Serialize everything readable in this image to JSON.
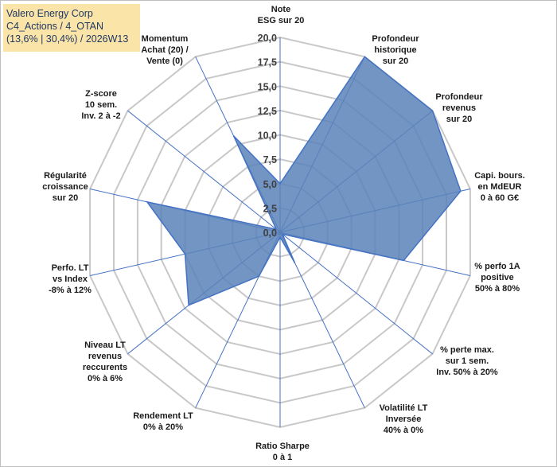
{
  "title": {
    "line1": "Valero Energy Corp",
    "line2": "C4_Actions / 4_OTAN",
    "line3": "(13,6% | 30,4%) / 2026W13"
  },
  "chart_data": {
    "type": "radar",
    "rmax": 20,
    "ticks": [
      "0,0",
      "2,5",
      "5,0",
      "7,5",
      "10,0",
      "12,5",
      "15,0",
      "17,5",
      "20,0"
    ],
    "fill_color": "#5b82b8",
    "line_color": "#4472c4",
    "grid_color": "#c8c8c8",
    "axes": [
      {
        "label": [
          "Note",
          "ESG sur 20"
        ],
        "value": 5.0
      },
      {
        "label": [
          "Profondeur",
          "historique",
          "sur 20"
        ],
        "value": 20.0
      },
      {
        "label": [
          "Profondeur",
          "revenus",
          "sur 20"
        ],
        "value": 20.0
      },
      {
        "label": [
          "Capi. bours.",
          "en MdEUR",
          "0 à 60 G€"
        ],
        "value": 19.0
      },
      {
        "label": [
          "% perfo 1A",
          "positive",
          "50% à 80%"
        ],
        "value": 13.0
      },
      {
        "label": [
          "% perte max.",
          "sur 1 sem.",
          "Inv. 50% à 20%"
        ],
        "value": 0.3
      },
      {
        "label": [
          "Volatilité LT",
          "Inversée",
          "40% à 0%"
        ],
        "value": 3.5
      },
      {
        "label": [
          "Ratio Sharpe",
          "0 à 1"
        ],
        "value": 0.5
      },
      {
        "label": [
          "Rendement LT",
          "0% à 20%"
        ],
        "value": 5.0
      },
      {
        "label": [
          "Niveau LT",
          "revenus",
          "reccurents",
          "0% à 6%"
        ],
        "value": 12.0
      },
      {
        "label": [
          "Perfo. LT",
          "vs Index",
          "-8% à 12%"
        ],
        "value": 10.0
      },
      {
        "label": [
          "Régularité",
          "croissance",
          "sur 20"
        ],
        "value": 14.0
      },
      {
        "label": [
          "Z-score",
          "10 sem.",
          "Inv. 2 à -2"
        ],
        "value": 0.5
      },
      {
        "label": [
          "Momentum",
          "Achat (20) /",
          "Vente (0)"
        ],
        "value": 11.0
      }
    ]
  }
}
